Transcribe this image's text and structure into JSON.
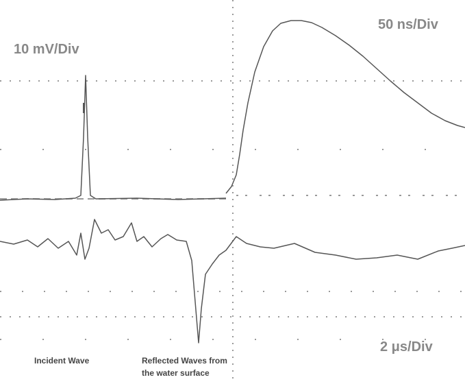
{
  "labels": {
    "vertical_scale": "10 mV/Div",
    "fast_time_scale": "50 ns/Div",
    "slow_time_scale": "2 μs/Div",
    "incident": "Incident Wave",
    "reflected_line1": "Reflected Waves from",
    "reflected_line2": "the water surface"
  }
}
